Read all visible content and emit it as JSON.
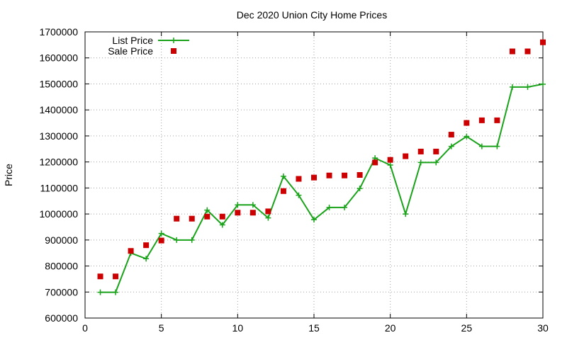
{
  "chart_data": {
    "type": "line",
    "title": "Dec 2020 Union City Home Prices",
    "xlabel": "",
    "ylabel": "Price",
    "xlim": [
      0,
      30
    ],
    "ylim": [
      600000,
      1700000
    ],
    "xticks": [
      0,
      5,
      10,
      15,
      20,
      25,
      30
    ],
    "yticks": [
      600000,
      700000,
      800000,
      900000,
      1000000,
      1100000,
      1200000,
      1300000,
      1400000,
      1500000,
      1600000,
      1700000
    ],
    "grid": true,
    "legend_position": "top-left",
    "series": [
      {
        "name": "List Price",
        "style": "line+cross-markers",
        "color": "#1aa31a",
        "x": [
          1,
          2,
          3,
          4,
          5,
          6,
          7,
          8,
          9,
          10,
          11,
          12,
          13,
          14,
          15,
          16,
          17,
          18,
          19,
          20,
          21,
          22,
          23,
          24,
          25,
          26,
          27,
          28,
          29,
          30
        ],
        "values": [
          699000,
          699000,
          850000,
          828000,
          925000,
          900000,
          900000,
          1015000,
          958000,
          1035000,
          1035000,
          985000,
          1145000,
          1072000,
          978000,
          1025000,
          1025000,
          1098000,
          1215000,
          1188000,
          1000000,
          1198000,
          1198000,
          1260000,
          1298000,
          1260000,
          1260000,
          1488000,
          1488000,
          1499000
        ]
      },
      {
        "name": "Sale Price",
        "style": "square-markers",
        "color": "#cc0000",
        "x": [
          1,
          2,
          3,
          4,
          5,
          6,
          7,
          8,
          9,
          10,
          11,
          12,
          13,
          14,
          15,
          16,
          17,
          18,
          19,
          20,
          21,
          22,
          23,
          24,
          25,
          26,
          27,
          28,
          29,
          30
        ],
        "values": [
          760000,
          760000,
          858000,
          880000,
          898000,
          982000,
          982000,
          990000,
          990000,
          1005000,
          1005000,
          1010000,
          1088000,
          1135000,
          1140000,
          1148000,
          1148000,
          1150000,
          1198000,
          1208000,
          1222000,
          1240000,
          1240000,
          1305000,
          1350000,
          1360000,
          1360000,
          1625000,
          1625000,
          1660000
        ]
      }
    ]
  }
}
